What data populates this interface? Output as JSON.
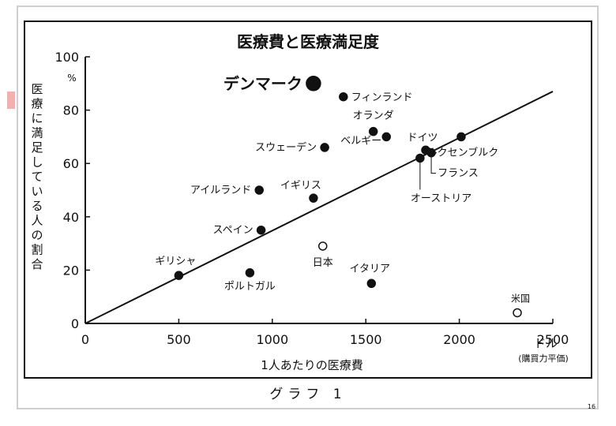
{
  "caption": "グラフ 1",
  "page_number": "16",
  "chart_data": {
    "type": "scatter",
    "title": "医療費と医療満足度",
    "xlabel": "1人あたりの医療費",
    "x_unit": "ドル",
    "x_unit_note": "(購買力平価)",
    "ylabel": "医療に満足している人の割合",
    "y_unit": "%",
    "xlim": [
      0,
      2500
    ],
    "ylim": [
      0,
      100
    ],
    "x_ticks": [
      0,
      500,
      1000,
      1500,
      2000,
      2500
    ],
    "y_ticks": [
      0,
      20,
      40,
      60,
      80,
      100
    ],
    "x_tick_labels": [
      "0",
      "500",
      "1000",
      "1500",
      "2000",
      "2500"
    ],
    "y_tick_labels": [
      "0",
      "20",
      "40",
      "60",
      "80",
      "100"
    ],
    "trend_line": {
      "start": [
        0,
        0
      ],
      "end": [
        2500,
        87
      ]
    },
    "points": [
      {
        "label": "デンマーク",
        "x": 1220,
        "y": 90,
        "style": "large-filled"
      },
      {
        "label": "フィンランド",
        "x": 1380,
        "y": 85,
        "style": "filled"
      },
      {
        "label": "オランダ",
        "x": 1540,
        "y": 72,
        "style": "filled"
      },
      {
        "label": "ベルギー",
        "x": 1610,
        "y": 70,
        "style": "filled"
      },
      {
        "label": "スウェーデン",
        "x": 1280,
        "y": 66,
        "style": "filled"
      },
      {
        "label": "ドイツ",
        "x": 1820,
        "y": 65,
        "style": "filled"
      },
      {
        "label": "フランス",
        "x": 1850,
        "y": 64,
        "style": "filled"
      },
      {
        "label": "オーストリア",
        "x": 1790,
        "y": 62,
        "style": "filled"
      },
      {
        "label": "ルクセンブルク",
        "x": 2010,
        "y": 70,
        "style": "filled"
      },
      {
        "label": "アイルランド",
        "x": 930,
        "y": 50,
        "style": "filled"
      },
      {
        "label": "イギリス",
        "x": 1220,
        "y": 47,
        "style": "filled"
      },
      {
        "label": "スペイン",
        "x": 940,
        "y": 35,
        "style": "filled"
      },
      {
        "label": "日本",
        "x": 1270,
        "y": 29,
        "style": "open"
      },
      {
        "label": "ギリシャ",
        "x": 500,
        "y": 18,
        "style": "filled"
      },
      {
        "label": "ポルトガル",
        "x": 880,
        "y": 19,
        "style": "filled"
      },
      {
        "label": "イタリア",
        "x": 1530,
        "y": 15,
        "style": "filled"
      },
      {
        "label": "米国",
        "x": 2310,
        "y": 4,
        "style": "open"
      }
    ]
  }
}
